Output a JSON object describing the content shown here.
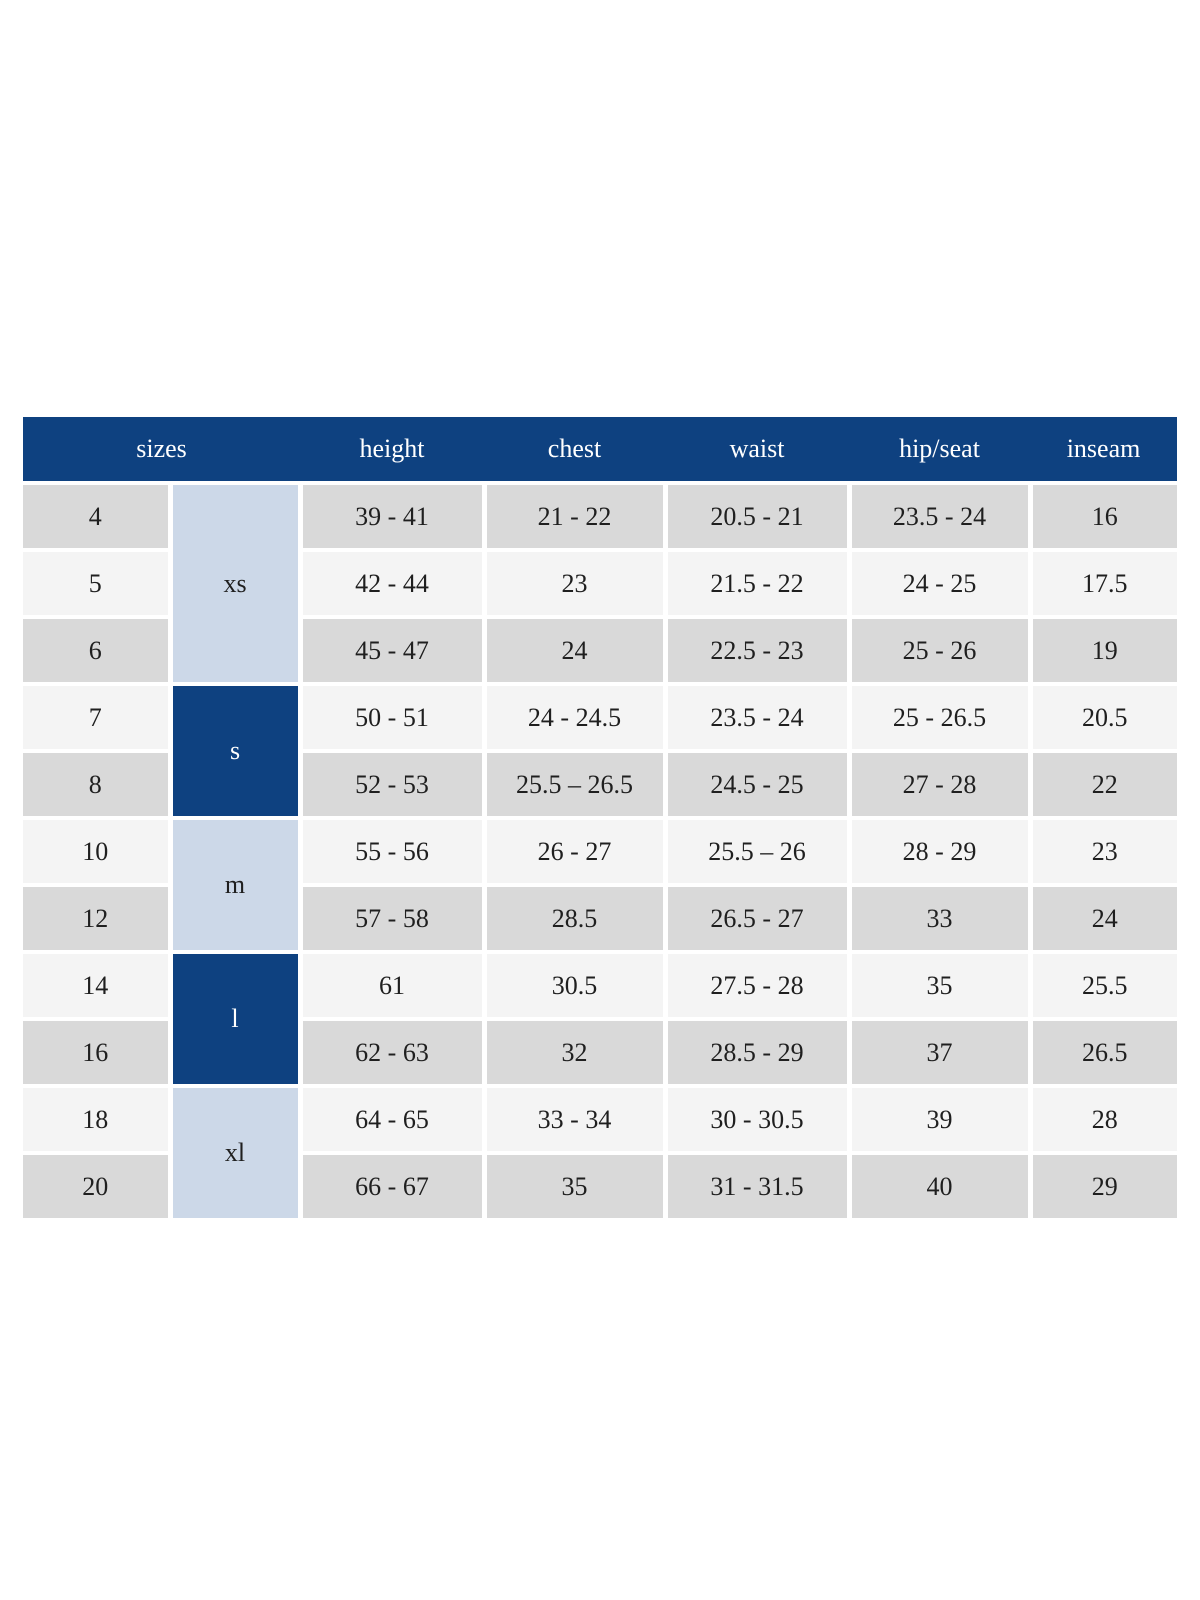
{
  "chart_data": {
    "type": "table",
    "header": {
      "sizes_label": "sizes",
      "columns": [
        "height",
        "chest",
        "waist",
        "hip/seat",
        "inseam"
      ]
    },
    "size_groups": [
      {
        "label": "xs",
        "start": 0,
        "span": 3,
        "variant": "light-blue"
      },
      {
        "label": "s",
        "start": 3,
        "span": 2,
        "variant": "dark-blue"
      },
      {
        "label": "m",
        "start": 5,
        "span": 2,
        "variant": "light-blue"
      },
      {
        "label": "l",
        "start": 7,
        "span": 2,
        "variant": "dark-blue"
      },
      {
        "label": "xl",
        "start": 9,
        "span": 2,
        "variant": "light-blue"
      }
    ],
    "rows": [
      {
        "size": "4",
        "group": "xs",
        "height": "39 - 41",
        "chest": "21 - 22",
        "waist": "20.5 - 21",
        "hip_seat": "23.5 - 24",
        "inseam": "16"
      },
      {
        "size": "5",
        "group": "xs",
        "height": "42 - 44",
        "chest": "23",
        "waist": "21.5 - 22",
        "hip_seat": "24 - 25",
        "inseam": "17.5"
      },
      {
        "size": "6",
        "group": "xs",
        "height": "45 - 47",
        "chest": "24",
        "waist": "22.5 - 23",
        "hip_seat": "25 - 26",
        "inseam": "19"
      },
      {
        "size": "7",
        "group": "s",
        "height": "50 - 51",
        "chest": "24 - 24.5",
        "waist": "23.5 - 24",
        "hip_seat": "25 - 26.5",
        "inseam": "20.5"
      },
      {
        "size": "8",
        "group": "s",
        "height": "52 - 53",
        "chest": "25.5 – 26.5",
        "waist": "24.5 - 25",
        "hip_seat": "27 - 28",
        "inseam": "22"
      },
      {
        "size": "10",
        "group": "m",
        "height": "55 - 56",
        "chest": "26 - 27",
        "waist": "25.5 – 26",
        "hip_seat": "28 - 29",
        "inseam": "23"
      },
      {
        "size": "12",
        "group": "m",
        "height": "57 - 58",
        "chest": "28.5",
        "waist": "26.5 - 27",
        "hip_seat": "33",
        "inseam": "24"
      },
      {
        "size": "14",
        "group": "l",
        "height": "61",
        "chest": "30.5",
        "waist": "27.5 - 28",
        "hip_seat": "35",
        "inseam": "25.5"
      },
      {
        "size": "16",
        "group": "l",
        "height": "62 - 63",
        "chest": "32",
        "waist": "28.5 - 29",
        "hip_seat": "37",
        "inseam": "26.5"
      },
      {
        "size": "18",
        "group": "xl",
        "height": "64 - 65",
        "chest": "33 - 34",
        "waist": "30 - 30.5",
        "hip_seat": "39",
        "inseam": "28"
      },
      {
        "size": "20",
        "group": "xl",
        "height": "66 - 67",
        "chest": "35",
        "waist": "31 - 31.5",
        "hip_seat": "40",
        "inseam": "29"
      }
    ],
    "colors": {
      "header_bg": "#0e4180",
      "header_text": "#ffffff",
      "group_light_bg": "#ccd8e8",
      "group_dark_bg": "#0e4180",
      "group_dark_text": "#ffffff",
      "row_gray": "#d9d9d9",
      "row_light": "#f4f4f4",
      "gap": "#ffffff",
      "body_text": "#1f1f1f",
      "page_bg": "#ffffff"
    }
  }
}
